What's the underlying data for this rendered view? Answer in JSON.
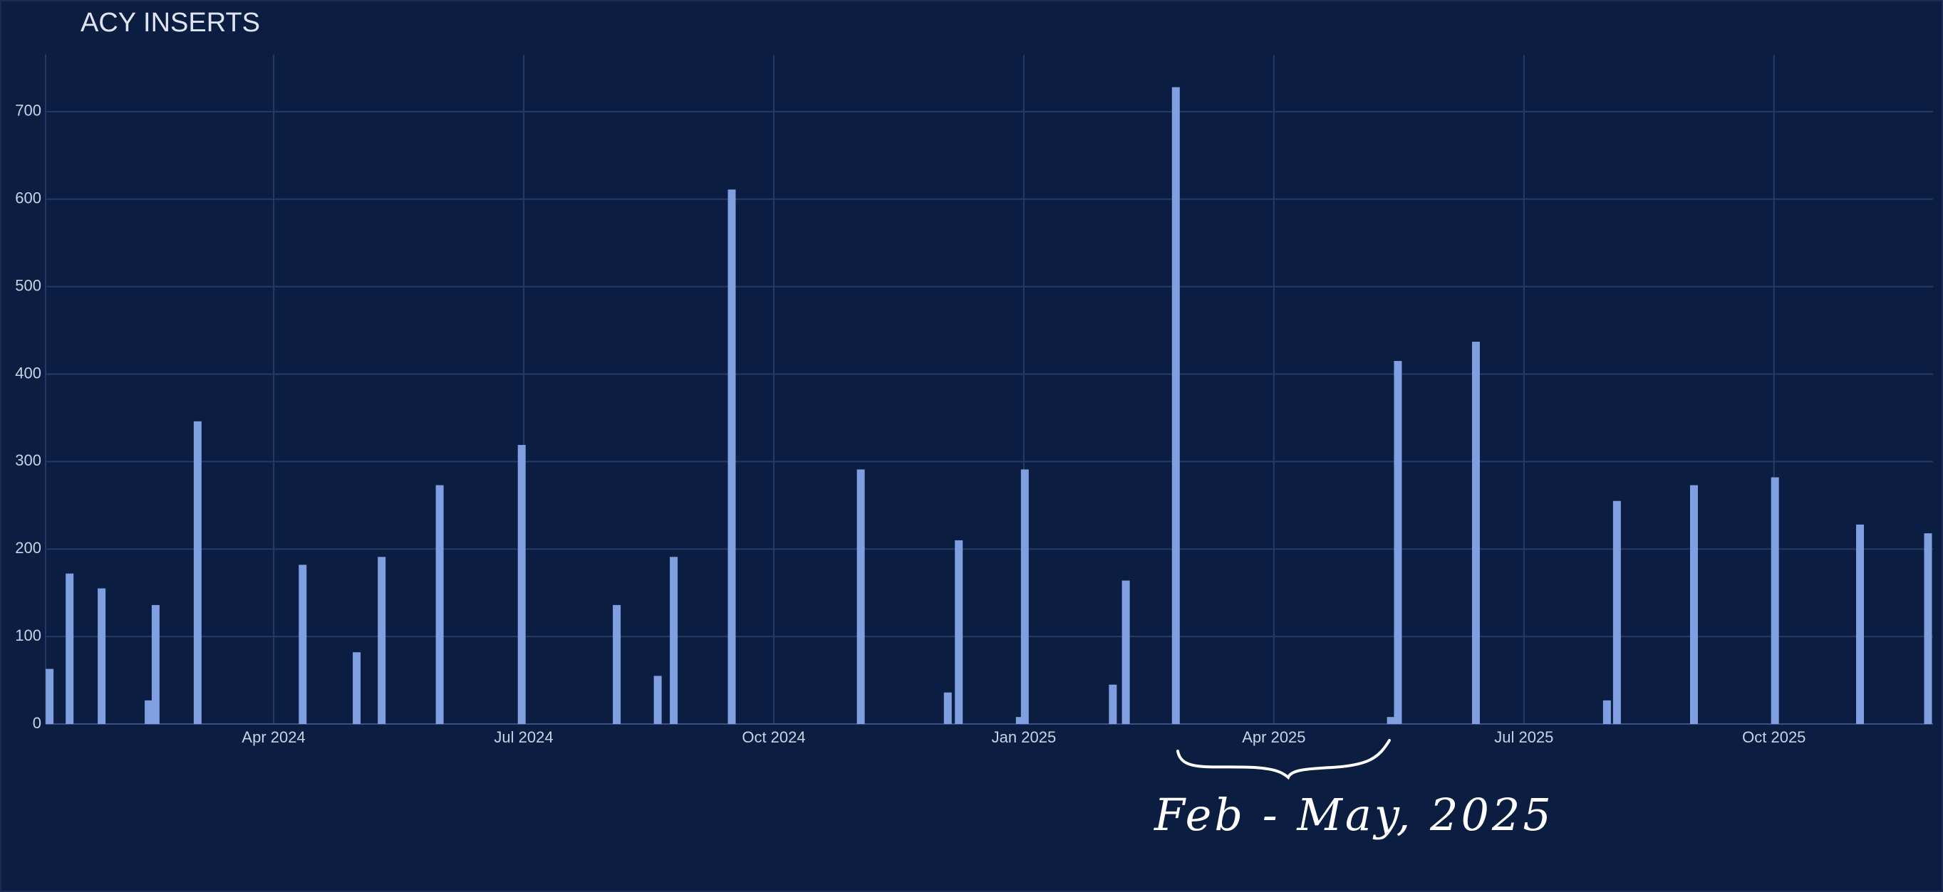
{
  "chart_data": {
    "type": "bar",
    "title": "ACY INSERTS",
    "x": [
      2024.026,
      2024.046,
      2024.078,
      2024.125,
      2024.132,
      2024.174,
      2024.279,
      2024.333,
      2024.358,
      2024.416,
      2024.498,
      2024.593,
      2024.634,
      2024.65,
      2024.708,
      2024.837,
      2024.924,
      2024.935,
      2024.996,
      2025.001,
      2025.089,
      2025.102,
      2025.152,
      2025.367,
      2025.374,
      2025.452,
      2025.583,
      2025.593,
      2025.67,
      2025.751,
      2025.836,
      2025.904
    ],
    "values": [
      63,
      172,
      155,
      27,
      136,
      346,
      182,
      82,
      191,
      273,
      319,
      136,
      55,
      191,
      611,
      291,
      36,
      210,
      8,
      291,
      45,
      164,
      728,
      8,
      415,
      437,
      27,
      255,
      273,
      282,
      228,
      218
    ],
    "color": "#7f9fe0",
    "xlim": [
      2024.022,
      2025.909
    ],
    "xticks": [
      {
        "value": 2024.25,
        "label": "Apr 2024"
      },
      {
        "value": 2024.5,
        "label": "Jul 2024"
      },
      {
        "value": 2024.75,
        "label": "Oct 2024"
      },
      {
        "value": 2025.0,
        "label": "Jan 2025"
      },
      {
        "value": 2025.25,
        "label": "Apr 2025"
      },
      {
        "value": 2025.5,
        "label": "Jul 2025"
      },
      {
        "value": 2025.75,
        "label": "Oct 2025"
      }
    ],
    "ylim": [
      0,
      765
    ],
    "yticks": [
      0,
      100,
      200,
      300,
      400,
      500,
      600,
      700
    ],
    "grid": true,
    "annotation": "Feb - May, 2025"
  }
}
